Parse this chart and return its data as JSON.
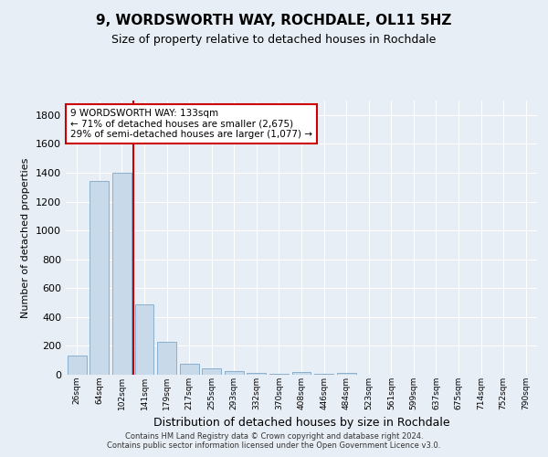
{
  "title": "9, WORDSWORTH WAY, ROCHDALE, OL11 5HZ",
  "subtitle": "Size of property relative to detached houses in Rochdale",
  "xlabel": "Distribution of detached houses by size in Rochdale",
  "ylabel": "Number of detached properties",
  "bar_color": "#c8d9ea",
  "bar_edge_color": "#8ab0ce",
  "categories": [
    "26sqm",
    "64sqm",
    "102sqm",
    "141sqm",
    "179sqm",
    "217sqm",
    "255sqm",
    "293sqm",
    "332sqm",
    "370sqm",
    "408sqm",
    "446sqm",
    "484sqm",
    "523sqm",
    "561sqm",
    "599sqm",
    "637sqm",
    "675sqm",
    "714sqm",
    "752sqm",
    "790sqm"
  ],
  "values": [
    135,
    1340,
    1400,
    490,
    225,
    75,
    45,
    28,
    15,
    5,
    20,
    5,
    15,
    0,
    0,
    0,
    0,
    0,
    0,
    0,
    0
  ],
  "ylim": [
    0,
    1900
  ],
  "yticks": [
    0,
    200,
    400,
    600,
    800,
    1000,
    1200,
    1400,
    1600,
    1800
  ],
  "property_line_x": 2.5,
  "annotation_line1": "9 WORDSWORTH WAY: 133sqm",
  "annotation_line2": "← 71% of detached houses are smaller (2,675)",
  "annotation_line3": "29% of semi-detached houses are larger (1,077) →",
  "annotation_box_color": "#ffffff",
  "annotation_box_edge": "#cc0000",
  "footer": "Contains HM Land Registry data © Crown copyright and database right 2024.\nContains public sector information licensed under the Open Government Licence v3.0.",
  "bg_color": "#e8eef5",
  "plot_bg_color": "#e8eef5",
  "grid_color": "#ffffff",
  "vline_color": "#cc0000",
  "title_fontsize": 11,
  "subtitle_fontsize": 9,
  "ylabel_fontsize": 8,
  "xlabel_fontsize": 9
}
